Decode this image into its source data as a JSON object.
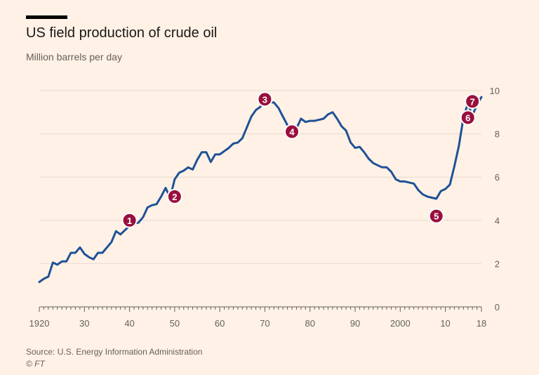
{
  "header": {
    "title": "US field production of crude oil",
    "subtitle": "Million barrels per day"
  },
  "footer": {
    "source": "Source: U.S. Energy Information Administration",
    "copyright": "© FT"
  },
  "colors": {
    "line": "#1f5197",
    "marker": "#990f3d",
    "grid": "#e6d9ce",
    "axis": "#66605c"
  },
  "chart_data": {
    "type": "line",
    "title": "US field production of crude oil",
    "ylabel": "Million barrels per day",
    "xlim": [
      1920,
      2018
    ],
    "ylim": [
      0,
      10
    ],
    "y_ticks": [
      0,
      2,
      4,
      6,
      8,
      10
    ],
    "x_ticks": [
      {
        "value": 1920,
        "label": "1920"
      },
      {
        "value": 1930,
        "label": "30"
      },
      {
        "value": 1940,
        "label": "40"
      },
      {
        "value": 1950,
        "label": "50"
      },
      {
        "value": 1960,
        "label": "60"
      },
      {
        "value": 1970,
        "label": "70"
      },
      {
        "value": 1980,
        "label": "80"
      },
      {
        "value": 1990,
        "label": "90"
      },
      {
        "value": 2000,
        "label": "2000"
      },
      {
        "value": 2010,
        "label": "10"
      },
      {
        "value": 2018,
        "label": "18"
      }
    ],
    "grid": true,
    "y_axis_position": "right",
    "series": [
      {
        "x": [
          1920,
          1921,
          1922,
          1923,
          1924,
          1925,
          1926,
          1927,
          1928,
          1929,
          1930,
          1931,
          1932,
          1933,
          1934,
          1935,
          1936,
          1937,
          1938,
          1939,
          1940,
          1941,
          1942,
          1943,
          1944,
          1945,
          1946,
          1947,
          1948,
          1949,
          1950,
          1951,
          1952,
          1953,
          1954,
          1955,
          1956,
          1957,
          1958,
          1959,
          1960,
          1961,
          1962,
          1963,
          1964,
          1965,
          1966,
          1967,
          1968,
          1969,
          1970,
          1971,
          1972,
          1973,
          1974,
          1975,
          1976,
          1977,
          1978,
          1979,
          1980,
          1981,
          1982,
          1983,
          1984,
          1985,
          1986,
          1987,
          1988,
          1989,
          1990,
          1991,
          1992,
          1993,
          1994,
          1995,
          1996,
          1997,
          1998,
          1999,
          2000,
          2001,
          2002,
          2003,
          2004,
          2005,
          2006,
          2007,
          2008,
          2009,
          2010,
          2011,
          2012,
          2013,
          2014,
          2015,
          2016,
          2017,
          2018
        ],
        "values": [
          1.15,
          1.3,
          1.4,
          2.05,
          1.95,
          2.1,
          2.1,
          2.5,
          2.5,
          2.75,
          2.45,
          2.3,
          2.2,
          2.5,
          2.5,
          2.75,
          3.0,
          3.5,
          3.35,
          3.55,
          3.75,
          3.85,
          3.9,
          4.15,
          4.6,
          4.7,
          4.75,
          5.1,
          5.5,
          5.05,
          5.9,
          6.2,
          6.3,
          6.45,
          6.35,
          6.8,
          7.15,
          7.15,
          6.7,
          7.05,
          7.05,
          7.2,
          7.35,
          7.55,
          7.6,
          7.8,
          8.3,
          8.8,
          9.1,
          9.25,
          9.65,
          9.45,
          9.45,
          9.2,
          8.8,
          8.4,
          8.15,
          8.25,
          8.7,
          8.55,
          8.6,
          8.6,
          8.65,
          8.7,
          8.9,
          9.0,
          8.7,
          8.35,
          8.15,
          7.6,
          7.35,
          7.4,
          7.15,
          6.85,
          6.65,
          6.55,
          6.45,
          6.45,
          6.25,
          5.9,
          5.8,
          5.8,
          5.75,
          5.7,
          5.4,
          5.2,
          5.1,
          5.05,
          5.0,
          5.35,
          5.45,
          5.65,
          6.5,
          7.45,
          8.75,
          9.4,
          8.85,
          9.35,
          9.7
        ]
      }
    ],
    "annotations": [
      {
        "label": "1",
        "x": 1940,
        "y": 4.0
      },
      {
        "label": "2",
        "x": 1950,
        "y": 5.1
      },
      {
        "label": "3",
        "x": 1970,
        "y": 9.6
      },
      {
        "label": "4",
        "x": 1976,
        "y": 8.1
      },
      {
        "label": "5",
        "x": 2008,
        "y": 4.2
      },
      {
        "label": "6",
        "x": 2015,
        "y": 8.75
      },
      {
        "label": "7",
        "x": 2016,
        "y": 9.5
      }
    ]
  }
}
